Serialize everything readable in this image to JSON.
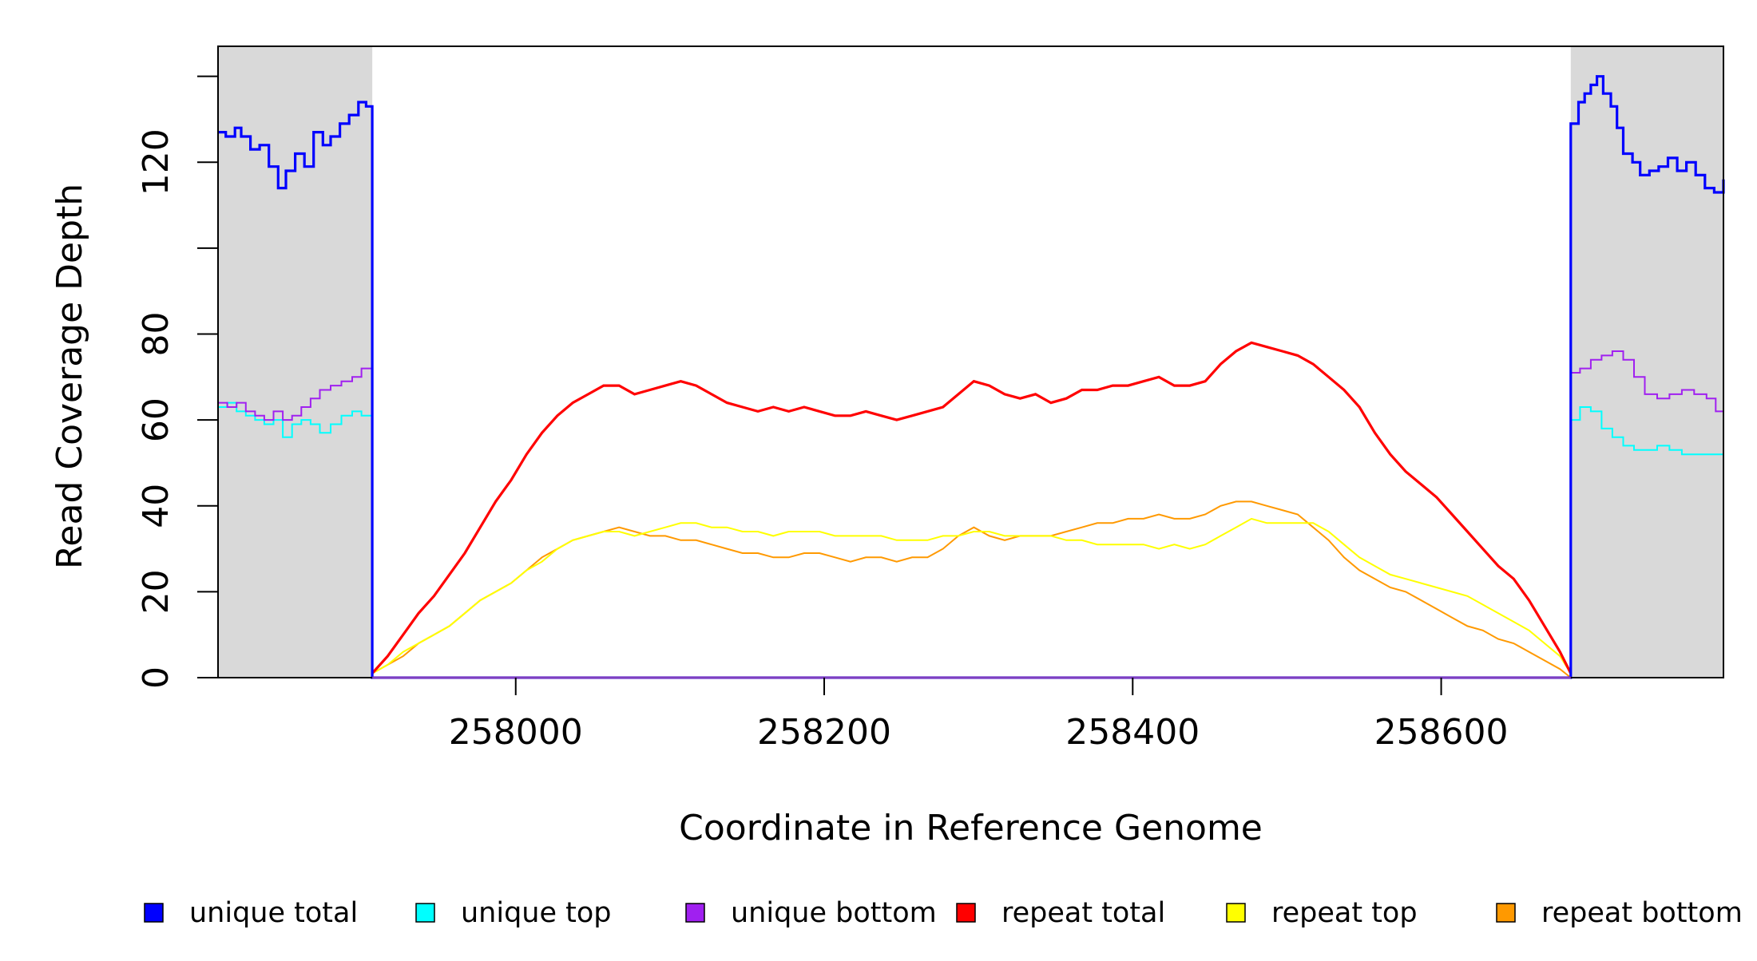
{
  "chart_data": {
    "type": "line",
    "title": "",
    "xlabel": "Coordinate in Reference Genome",
    "ylabel": "Read Coverage Depth",
    "xlim": [
      257807,
      258783
    ],
    "ylim": [
      0,
      147
    ],
    "x_ticks": [
      {
        "value": 258000,
        "label": "258000"
      },
      {
        "value": 258200,
        "label": "258200"
      },
      {
        "value": 258400,
        "label": "258400"
      },
      {
        "value": 258600,
        "label": "258600"
      }
    ],
    "y_ticks": [
      {
        "value": 0,
        "label": "0"
      },
      {
        "value": 20,
        "label": "20"
      },
      {
        "value": 40,
        "label": "40"
      },
      {
        "value": 60,
        "label": "60"
      },
      {
        "value": 80,
        "label": "80"
      },
      {
        "value": 100,
        "label": ""
      },
      {
        "value": 120,
        "label": "120"
      },
      {
        "value": 140,
        "label": ""
      }
    ],
    "shaded_regions": [
      {
        "from": 257807,
        "to": 257907,
        "color": "#d9d9d9"
      },
      {
        "from": 258684,
        "to": 258783,
        "color": "#d9d9d9"
      }
    ],
    "grid": false,
    "legend_position": "bottom",
    "series": [
      {
        "name": "unique total",
        "color": "#0000ff",
        "step": true,
        "x": [
          257807,
          257812,
          257818,
          257822,
          257828,
          257834,
          257840,
          257846,
          257851,
          257857,
          257863,
          257869,
          257875,
          257880,
          257886,
          257892,
          257898,
          257903,
          257907,
          257907,
          258684,
          258684,
          258689,
          258693,
          258697,
          258701,
          258705,
          258710,
          258714,
          258718,
          258724,
          258729,
          258735,
          258741,
          258747,
          258753,
          258759,
          258765,
          258771,
          258777,
          258783
        ],
        "y": [
          127,
          126,
          128,
          126,
          123,
          124,
          119,
          114,
          118,
          122,
          119,
          127,
          124,
          126,
          129,
          131,
          134,
          133,
          130,
          0,
          0,
          129,
          134,
          136,
          138,
          140,
          136,
          133,
          128,
          122,
          120,
          117,
          118,
          119,
          121,
          118,
          120,
          117,
          114,
          113,
          116
        ]
      },
      {
        "name": "unique top",
        "color": "#00ffff",
        "step": true,
        "x": [
          257807,
          257813,
          257819,
          257825,
          257831,
          257837,
          257843,
          257849,
          257855,
          257861,
          257867,
          257873,
          257880,
          257887,
          257894,
          257900,
          257907,
          257907,
          258684,
          258684,
          258690,
          258697,
          258704,
          258711,
          258718,
          258725,
          258732,
          258740,
          258748,
          258756,
          258764,
          258772,
          258778,
          258783
        ],
        "y": [
          63,
          64,
          62,
          61,
          60,
          59,
          60,
          56,
          59,
          60,
          59,
          57,
          59,
          61,
          62,
          61,
          61,
          0,
          0,
          60,
          63,
          62,
          58,
          56,
          54,
          53,
          53,
          54,
          53,
          52,
          52,
          52,
          52,
          51
        ]
      },
      {
        "name": "unique bottom",
        "color": "#a020f0",
        "step": true,
        "x": [
          257807,
          257813,
          257819,
          257825,
          257831,
          257837,
          257843,
          257849,
          257855,
          257861,
          257867,
          257873,
          257880,
          257887,
          257894,
          257900,
          257907,
          257907,
          258684,
          258684,
          258690,
          258697,
          258704,
          258711,
          258718,
          258725,
          258732,
          258740,
          258748,
          258756,
          258764,
          258772,
          258778,
          258783
        ],
        "y": [
          64,
          63,
          64,
          62,
          61,
          60,
          62,
          60,
          61,
          63,
          65,
          67,
          68,
          69,
          70,
          72,
          70,
          0,
          0,
          71,
          72,
          74,
          75,
          76,
          74,
          70,
          66,
          65,
          66,
          67,
          66,
          65,
          62,
          61
        ]
      },
      {
        "name": "repeat total",
        "color": "#ff0000",
        "step": false,
        "x": [
          257907,
          257917,
          257927,
          257937,
          257947,
          257957,
          257967,
          257977,
          257987,
          257997,
          258007,
          258017,
          258027,
          258037,
          258047,
          258057,
          258067,
          258077,
          258087,
          258097,
          258107,
          258117,
          258127,
          258137,
          258147,
          258157,
          258167,
          258177,
          258187,
          258197,
          258207,
          258217,
          258227,
          258237,
          258247,
          258257,
          258267,
          258277,
          258287,
          258297,
          258307,
          258317,
          258327,
          258337,
          258347,
          258357,
          258367,
          258377,
          258387,
          258397,
          258407,
          258417,
          258427,
          258437,
          258447,
          258457,
          258467,
          258477,
          258487,
          258497,
          258507,
          258517,
          258527,
          258537,
          258547,
          258557,
          258567,
          258577,
          258587,
          258597,
          258607,
          258617,
          258627,
          258637,
          258647,
          258657,
          258667,
          258677,
          258684
        ],
        "y": [
          1,
          5,
          10,
          15,
          19,
          24,
          29,
          35,
          41,
          46,
          52,
          57,
          61,
          64,
          66,
          68,
          68,
          66,
          67,
          68,
          69,
          68,
          66,
          64,
          63,
          62,
          63,
          62,
          63,
          62,
          61,
          61,
          62,
          61,
          60,
          61,
          62,
          63,
          66,
          69,
          68,
          66,
          65,
          66,
          64,
          65,
          67,
          67,
          68,
          68,
          69,
          70,
          68,
          68,
          69,
          73,
          76,
          78,
          77,
          76,
          75,
          73,
          70,
          67,
          63,
          57,
          52,
          48,
          45,
          42,
          38,
          34,
          30,
          26,
          23,
          18,
          12,
          6,
          1
        ]
      },
      {
        "name": "repeat top",
        "color": "#ffff00",
        "step": false,
        "x": [
          257907,
          257917,
          257927,
          257937,
          257947,
          257957,
          257967,
          257977,
          257987,
          257997,
          258007,
          258017,
          258027,
          258037,
          258047,
          258057,
          258067,
          258077,
          258087,
          258097,
          258107,
          258117,
          258127,
          258137,
          258147,
          258157,
          258167,
          258177,
          258187,
          258197,
          258207,
          258217,
          258227,
          258237,
          258247,
          258257,
          258267,
          258277,
          258287,
          258297,
          258307,
          258317,
          258327,
          258337,
          258347,
          258357,
          258367,
          258377,
          258387,
          258397,
          258407,
          258417,
          258427,
          258437,
          258447,
          258457,
          258467,
          258477,
          258487,
          258497,
          258507,
          258517,
          258527,
          258537,
          258547,
          258557,
          258567,
          258577,
          258587,
          258597,
          258607,
          258617,
          258627,
          258637,
          258647,
          258657,
          258667,
          258677,
          258684
        ],
        "y": [
          1,
          3,
          6,
          8,
          10,
          12,
          15,
          18,
          20,
          22,
          25,
          27,
          30,
          32,
          33,
          34,
          34,
          33,
          34,
          35,
          36,
          36,
          35,
          35,
          34,
          34,
          33,
          34,
          34,
          34,
          33,
          33,
          33,
          33,
          32,
          32,
          32,
          33,
          33,
          34,
          34,
          33,
          33,
          33,
          33,
          32,
          32,
          31,
          31,
          31,
          31,
          30,
          31,
          30,
          31,
          33,
          35,
          37,
          36,
          36,
          36,
          36,
          34,
          31,
          28,
          26,
          24,
          23,
          22,
          21,
          20,
          19,
          17,
          15,
          13,
          11,
          8,
          5,
          1
        ]
      },
      {
        "name": "repeat bottom",
        "color": "#ff9900",
        "step": false,
        "x": [
          257907,
          257917,
          257927,
          257937,
          257947,
          257957,
          257967,
          257977,
          257987,
          257997,
          258007,
          258017,
          258027,
          258037,
          258047,
          258057,
          258067,
          258077,
          258087,
          258097,
          258107,
          258117,
          258127,
          258137,
          258147,
          258157,
          258167,
          258177,
          258187,
          258197,
          258207,
          258217,
          258227,
          258237,
          258247,
          258257,
          258267,
          258277,
          258287,
          258297,
          258307,
          258317,
          258327,
          258337,
          258347,
          258357,
          258367,
          258377,
          258387,
          258397,
          258407,
          258417,
          258427,
          258437,
          258447,
          258457,
          258467,
          258477,
          258487,
          258497,
          258507,
          258517,
          258527,
          258537,
          258547,
          258557,
          258567,
          258577,
          258587,
          258597,
          258607,
          258617,
          258627,
          258637,
          258647,
          258657,
          258667,
          258677,
          258684
        ],
        "y": [
          1,
          3,
          5,
          8,
          10,
          12,
          15,
          18,
          20,
          22,
          25,
          28,
          30,
          32,
          33,
          34,
          35,
          34,
          33,
          33,
          32,
          32,
          31,
          30,
          29,
          29,
          28,
          28,
          29,
          29,
          28,
          27,
          28,
          28,
          27,
          28,
          28,
          30,
          33,
          35,
          33,
          32,
          33,
          33,
          33,
          34,
          35,
          36,
          36,
          37,
          37,
          38,
          37,
          37,
          38,
          40,
          41,
          41,
          40,
          39,
          38,
          35,
          32,
          28,
          25,
          23,
          21,
          20,
          18,
          16,
          14,
          12,
          11,
          9,
          8,
          6,
          4,
          2,
          0
        ]
      }
    ],
    "legend": [
      {
        "label": "unique total",
        "color": "#0000ff"
      },
      {
        "label": "unique top",
        "color": "#00ffff"
      },
      {
        "label": "unique bottom",
        "color": "#a020f0"
      },
      {
        "label": "repeat total",
        "color": "#ff0000"
      },
      {
        "label": "repeat top",
        "color": "#ffff00"
      },
      {
        "label": "repeat bottom",
        "color": "#ff9900"
      }
    ]
  }
}
